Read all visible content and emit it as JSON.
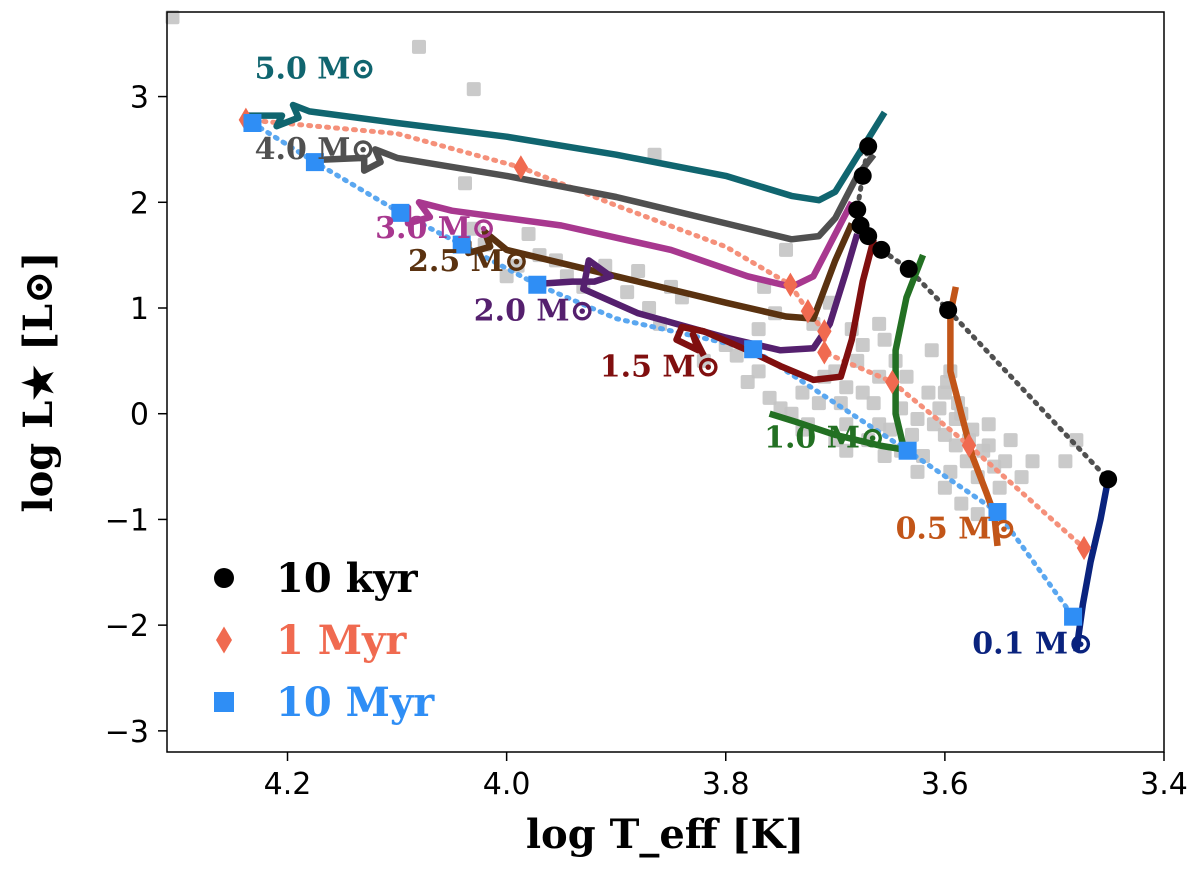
{
  "chart_data": {
    "type": "line",
    "title": "",
    "xlabel": "log T_eff [K]",
    "ylabel": "log L★ [L⊙]",
    "xlim": [
      4.31,
      3.4
    ],
    "ylim": [
      -3.2,
      3.8
    ],
    "xticks": [
      4.2,
      4.0,
      3.8,
      3.6,
      3.4
    ],
    "xtick_labels": [
      "4.2",
      "4.0",
      "3.8",
      "3.6",
      "3.4"
    ],
    "yticks": [
      3,
      2,
      1,
      0,
      -1,
      -2,
      -3
    ],
    "ytick_labels": [
      "3",
      "2",
      "1",
      "0",
      "−1",
      "−2",
      "−3"
    ],
    "series": [
      {
        "name": "5.0 M⊙",
        "label": "5.0 M⊙",
        "color": "#10656f",
        "label_pos": [
          4.23,
          3.17
        ],
        "points": [
          [
            3.655,
            2.85
          ],
          [
            3.673,
            2.55
          ],
          [
            3.7,
            2.1
          ],
          [
            3.715,
            2.02
          ],
          [
            3.74,
            2.06
          ],
          [
            3.8,
            2.25
          ],
          [
            3.9,
            2.45
          ],
          [
            4.0,
            2.62
          ],
          [
            4.1,
            2.75
          ],
          [
            4.18,
            2.86
          ],
          [
            4.195,
            2.92
          ],
          [
            4.19,
            2.8
          ],
          [
            4.21,
            2.72
          ],
          [
            4.205,
            2.82
          ],
          [
            4.24,
            2.82
          ]
        ]
      },
      {
        "name": "4.0 M⊙",
        "label": "4.0 M⊙",
        "color": "#505050",
        "label_pos": [
          4.23,
          2.41
        ],
        "points": [
          [
            3.665,
            2.45
          ],
          [
            3.68,
            2.25
          ],
          [
            3.7,
            1.85
          ],
          [
            3.715,
            1.68
          ],
          [
            3.74,
            1.65
          ],
          [
            3.8,
            1.8
          ],
          [
            3.9,
            2.05
          ],
          [
            4.0,
            2.25
          ],
          [
            4.1,
            2.42
          ],
          [
            4.12,
            2.5
          ],
          [
            4.115,
            2.38
          ],
          [
            4.13,
            2.3
          ],
          [
            4.13,
            2.42
          ],
          [
            4.175,
            2.4
          ]
        ]
      },
      {
        "name": "3.0 M⊙",
        "label": "3.0 M⊙",
        "color": "#a8388f",
        "label_pos": [
          4.12,
          1.66
        ],
        "points": [
          [
            3.685,
            2.0
          ],
          [
            3.7,
            1.7
          ],
          [
            3.72,
            1.3
          ],
          [
            3.74,
            1.2
          ],
          [
            3.78,
            1.3
          ],
          [
            3.85,
            1.55
          ],
          [
            3.95,
            1.78
          ],
          [
            4.05,
            1.92
          ],
          [
            4.08,
            2.0
          ],
          [
            4.07,
            1.86
          ],
          [
            4.09,
            1.8
          ],
          [
            4.09,
            1.95
          ],
          [
            4.105,
            1.92
          ]
        ]
      },
      {
        "name": "2.5 M⊙",
        "label": "2.5 M⊙",
        "color": "#5a3210",
        "label_pos": [
          4.09,
          1.35
        ],
        "points": [
          [
            3.685,
            1.8
          ],
          [
            3.7,
            1.45
          ],
          [
            3.72,
            0.9
          ],
          [
            3.745,
            0.92
          ],
          [
            3.8,
            1.05
          ],
          [
            3.9,
            1.3
          ],
          [
            4.0,
            1.55
          ],
          [
            4.02,
            1.72
          ],
          [
            4.015,
            1.58
          ],
          [
            4.035,
            1.52
          ],
          [
            4.035,
            1.62
          ],
          [
            4.045,
            1.62
          ]
        ]
      },
      {
        "name": "2.0 M⊙",
        "label": "2.0 M⊙",
        "color": "#55206e",
        "label_pos": [
          4.03,
          0.88
        ],
        "points": [
          [
            3.68,
            1.7
          ],
          [
            3.69,
            1.35
          ],
          [
            3.705,
            0.85
          ],
          [
            3.72,
            0.62
          ],
          [
            3.75,
            0.6
          ],
          [
            3.8,
            0.72
          ],
          [
            3.88,
            0.95
          ],
          [
            3.93,
            1.18
          ],
          [
            3.925,
            1.45
          ],
          [
            3.905,
            1.3
          ],
          [
            3.92,
            1.25
          ],
          [
            3.94,
            1.25
          ],
          [
            3.97,
            1.23
          ]
        ]
      },
      {
        "name": "1.5 M⊙",
        "label": "1.5 M⊙",
        "color": "#800f0f",
        "label_pos": [
          3.915,
          0.35
        ],
        "points": [
          [
            3.665,
            1.65
          ],
          [
            3.675,
            1.25
          ],
          [
            3.685,
            0.7
          ],
          [
            3.695,
            0.35
          ],
          [
            3.72,
            0.32
          ],
          [
            3.75,
            0.45
          ],
          [
            3.78,
            0.6
          ],
          [
            3.82,
            0.78
          ],
          [
            3.84,
            0.82
          ],
          [
            3.845,
            0.7
          ],
          [
            3.825,
            0.6
          ],
          [
            3.83,
            0.75
          ],
          [
            3.82,
            0.55
          ]
        ]
      },
      {
        "name": "1.0 M⊙",
        "label": "1.0 M⊙",
        "color": "#237023",
        "label_pos": [
          3.765,
          -0.32
        ],
        "points": [
          [
            3.62,
            1.5
          ],
          [
            3.635,
            1.1
          ],
          [
            3.645,
            0.6
          ],
          [
            3.645,
            0.0
          ],
          [
            3.638,
            -0.3
          ],
          [
            3.632,
            -0.35
          ],
          [
            3.66,
            -0.3
          ],
          [
            3.7,
            -0.2
          ],
          [
            3.735,
            -0.08
          ],
          [
            3.76,
            0.0
          ]
        ]
      },
      {
        "name": "0.5 M⊙",
        "label": "0.5 M⊙",
        "color": "#c25518",
        "label_pos": [
          3.645,
          -1.18
        ],
        "points": [
          [
            3.59,
            1.2
          ],
          [
            3.595,
            0.95
          ],
          [
            3.595,
            0.4
          ],
          [
            3.585,
            0.0
          ],
          [
            3.575,
            -0.4
          ],
          [
            3.562,
            -0.75
          ],
          [
            3.555,
            -0.95
          ],
          [
            3.552,
            -1.25
          ]
        ]
      },
      {
        "name": "0.1 M⊙",
        "label": "0.1 M⊙",
        "color": "#0a237e",
        "label_pos": [
          3.575,
          -2.27
        ],
        "points": [
          [
            3.451,
            -0.62
          ],
          [
            3.458,
            -1.0
          ],
          [
            3.467,
            -1.4
          ],
          [
            3.474,
            -1.8
          ],
          [
            3.478,
            -2.1
          ],
          [
            3.48,
            -2.25
          ]
        ]
      }
    ],
    "isochrones": [
      {
        "name": "10 kyr",
        "label": "10 kyr",
        "color": "#000000",
        "line_color": "#505050",
        "marker": "circle",
        "points": [
          [
            3.67,
            2.53
          ],
          [
            3.675,
            2.25
          ],
          [
            3.68,
            1.93
          ],
          [
            3.677,
            1.78
          ],
          [
            3.67,
            1.68
          ],
          [
            3.658,
            1.55
          ],
          [
            3.633,
            1.37
          ],
          [
            3.597,
            0.98
          ],
          [
            3.451,
            -0.62
          ]
        ],
        "line_points": [
          [
            3.678,
            2.45
          ],
          [
            3.672,
            2.5
          ],
          [
            3.67,
            2.53
          ],
          [
            3.675,
            2.25
          ],
          [
            3.68,
            1.93
          ],
          [
            3.677,
            1.78
          ],
          [
            3.67,
            1.68
          ],
          [
            3.658,
            1.55
          ],
          [
            3.633,
            1.37
          ],
          [
            3.597,
            0.98
          ],
          [
            3.451,
            -0.62
          ]
        ]
      },
      {
        "name": "1 Myr",
        "label": "1 Myr",
        "color": "#f06a50",
        "line_color": "#f5907a",
        "marker": "diamond",
        "points": [
          [
            4.238,
            2.78
          ],
          [
            3.987,
            2.33
          ],
          [
            3.741,
            1.22
          ],
          [
            3.725,
            0.97
          ],
          [
            3.71,
            0.78
          ],
          [
            3.71,
            0.58
          ],
          [
            3.648,
            0.3
          ],
          [
            3.578,
            -0.3
          ],
          [
            3.473,
            -1.27
          ]
        ],
        "line_points": [
          [
            4.238,
            2.78
          ],
          [
            4.1,
            2.65
          ],
          [
            3.987,
            2.33
          ],
          [
            3.9,
            1.97
          ],
          [
            3.8,
            1.58
          ],
          [
            3.741,
            1.22
          ],
          [
            3.725,
            0.97
          ],
          [
            3.71,
            0.78
          ],
          [
            3.71,
            0.58
          ],
          [
            3.648,
            0.3
          ],
          [
            3.578,
            -0.3
          ],
          [
            3.473,
            -1.27
          ]
        ]
      },
      {
        "name": "10 Myr",
        "label": "10 Myr",
        "color": "#2f8ef5",
        "line_color": "#5aa7f0",
        "marker": "square",
        "points": [
          [
            4.232,
            2.75
          ],
          [
            4.175,
            2.38
          ],
          [
            4.097,
            1.9
          ],
          [
            4.041,
            1.6
          ],
          [
            3.972,
            1.22
          ],
          [
            3.775,
            0.61
          ],
          [
            3.634,
            -0.35
          ],
          [
            3.552,
            -0.93
          ],
          [
            3.483,
            -1.92
          ]
        ],
        "line_points": [
          [
            4.232,
            2.75
          ],
          [
            4.175,
            2.38
          ],
          [
            4.097,
            1.9
          ],
          [
            4.041,
            1.6
          ],
          [
            3.972,
            1.22
          ],
          [
            3.9,
            0.9
          ],
          [
            3.775,
            0.61
          ],
          [
            3.634,
            -0.35
          ],
          [
            3.552,
            -0.93
          ],
          [
            3.483,
            -1.92
          ]
        ]
      }
    ],
    "observed": {
      "name": "observed stars",
      "color": "#c4c4c4",
      "points": [
        [
          4.305,
          3.75
        ],
        [
          4.08,
          3.47
        ],
        [
          4.03,
          3.07
        ],
        [
          3.865,
          2.45
        ],
        [
          4.038,
          2.18
        ],
        [
          4.03,
          1.75
        ],
        [
          4.02,
          1.6
        ],
        [
          4.0,
          1.3
        ],
        [
          3.99,
          1.4
        ],
        [
          3.98,
          1.7
        ],
        [
          3.97,
          1.5
        ],
        [
          3.955,
          1.45
        ],
        [
          3.945,
          1.3
        ],
        [
          3.93,
          1.2
        ],
        [
          3.91,
          1.4
        ],
        [
          3.89,
          1.15
        ],
        [
          3.88,
          1.35
        ],
        [
          3.87,
          1.0
        ],
        [
          3.86,
          0.85
        ],
        [
          3.85,
          1.2
        ],
        [
          3.84,
          1.1
        ],
        [
          3.82,
          0.5
        ],
        [
          3.8,
          0.65
        ],
        [
          3.79,
          0.55
        ],
        [
          3.78,
          0.3
        ],
        [
          3.77,
          0.4
        ],
        [
          3.76,
          0.15
        ],
        [
          3.75,
          0.05
        ],
        [
          3.74,
          0.0
        ],
        [
          3.73,
          0.2
        ],
        [
          3.725,
          -0.1
        ],
        [
          3.715,
          0.1
        ],
        [
          3.7,
          0.4
        ],
        [
          3.695,
          0.1
        ],
        [
          3.69,
          -0.1
        ],
        [
          3.685,
          0.8
        ],
        [
          3.68,
          0.5
        ],
        [
          3.675,
          0.2
        ],
        [
          3.67,
          -0.25
        ],
        [
          3.665,
          0.1
        ],
        [
          3.66,
          0.35
        ],
        [
          3.655,
          -0.4
        ],
        [
          3.65,
          -0.15
        ],
        [
          3.645,
          0.5
        ],
        [
          3.64,
          0.05
        ],
        [
          3.635,
          0.35
        ],
        [
          3.63,
          -0.2
        ],
        [
          3.625,
          -0.05
        ],
        [
          3.62,
          -0.4
        ],
        [
          3.615,
          0.2
        ],
        [
          3.612,
          0.6
        ],
        [
          3.61,
          -0.1
        ],
        [
          3.605,
          0.05
        ],
        [
          3.6,
          -0.2
        ],
        [
          3.598,
          0.3
        ],
        [
          3.595,
          -0.55
        ],
        [
          3.59,
          -0.3
        ],
        [
          3.585,
          0.0
        ],
        [
          3.58,
          -0.45
        ],
        [
          3.575,
          -0.15
        ],
        [
          3.57,
          -0.6
        ],
        [
          3.565,
          -0.35
        ],
        [
          3.56,
          -0.1
        ],
        [
          3.555,
          -0.5
        ],
        [
          3.55,
          -0.7
        ],
        [
          3.545,
          -0.45
        ],
        [
          3.54,
          -0.25
        ],
        [
          3.53,
          -0.6
        ],
        [
          3.52,
          -0.45
        ],
        [
          3.6,
          -0.7
        ],
        [
          3.625,
          -0.55
        ],
        [
          3.69,
          -0.35
        ],
        [
          3.7,
          -0.25
        ],
        [
          3.73,
          -0.15
        ],
        [
          3.745,
          1.55
        ],
        [
          3.765,
          1.2
        ],
        [
          3.755,
          0.95
        ],
        [
          3.77,
          0.8
        ],
        [
          3.72,
          0.85
        ],
        [
          3.705,
          1.05
        ],
        [
          3.71,
          0.35
        ],
        [
          3.69,
          0.25
        ],
        [
          3.675,
          0.65
        ],
        [
          3.66,
          0.85
        ],
        [
          3.655,
          0.7
        ],
        [
          3.66,
          -0.1
        ],
        [
          3.64,
          -0.35
        ],
        [
          3.585,
          -0.85
        ],
        [
          3.57,
          -0.95
        ],
        [
          3.48,
          -0.25
        ],
        [
          3.49,
          -0.45
        ],
        [
          3.595,
          0.4
        ],
        [
          3.588,
          0.1
        ],
        [
          3.6,
          0.2
        ],
        [
          3.59,
          -0.05
        ],
        [
          3.578,
          -0.25
        ],
        [
          3.56,
          -0.3
        ]
      ]
    },
    "legend": {
      "placement": "bottom-left",
      "entries": [
        "10 kyr",
        "1 Myr",
        "10 Myr"
      ]
    }
  }
}
